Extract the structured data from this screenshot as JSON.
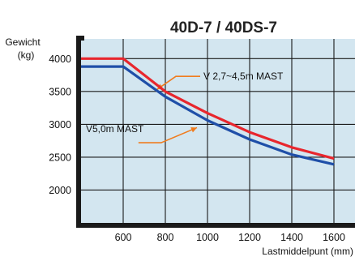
{
  "chart_data": {
    "type": "line",
    "title": "40D-7 / 40DS-7",
    "ylabel": "Gewicht",
    "yunit": "(kg)",
    "xlabel": "Lastmiddelpunt (mm)",
    "x_ticks": [
      600,
      800,
      1000,
      1200,
      1400,
      1600
    ],
    "y_ticks": [
      2000,
      2500,
      3000,
      3500,
      4000
    ],
    "xlim": [
      400,
      1700
    ],
    "ylim": [
      1500,
      4300
    ],
    "grid": true,
    "colors": {
      "plot_bg": "#d3e6f0",
      "grid": "#1a1a1a",
      "frame": "#1a1a1a"
    },
    "series": [
      {
        "name": "V 2,7~4,5m MAST",
        "color": "#e8262d",
        "x": [
          400,
          600,
          800,
          1000,
          1200,
          1400,
          1600
        ],
        "y": [
          4000,
          4000,
          3500,
          3170,
          2880,
          2650,
          2480
        ]
      },
      {
        "name": "V5,0m MAST",
        "color": "#1f4fa8",
        "x": [
          400,
          600,
          800,
          1000,
          1200,
          1400,
          1600
        ],
        "y": [
          3880,
          3880,
          3420,
          3060,
          2770,
          2540,
          2390
        ]
      }
    ],
    "annotations": [
      {
        "text": "V 2,7~4,5m MAST",
        "arrow_from": [
          850,
          3730
        ],
        "arrow_to": [
          760,
          3530
        ],
        "color": "#f07c1e"
      },
      {
        "text": "V5,0m MAST",
        "arrow_from": [
          780,
          2720
        ],
        "arrow_to": [
          950,
          2950
        ],
        "color": "#f07c1e"
      }
    ]
  }
}
